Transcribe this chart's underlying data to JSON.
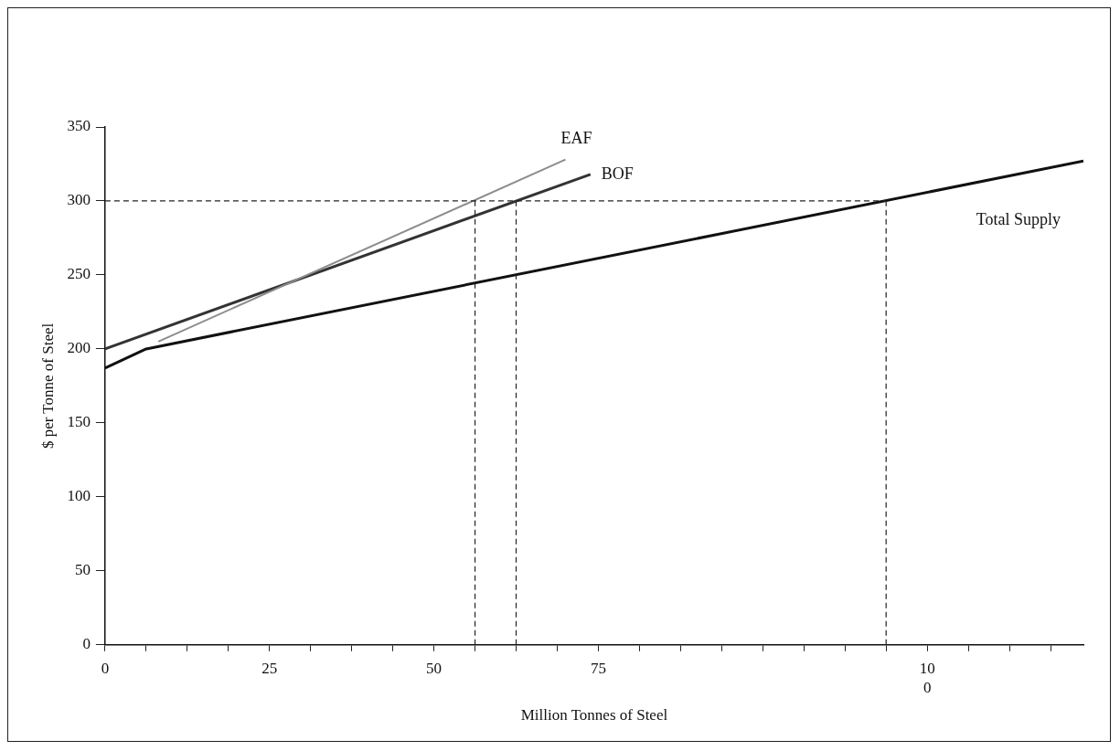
{
  "chart_data": {
    "type": "line",
    "xlabel": "Million Tonnes of Steel",
    "ylabel": "$ per Tonne of Steel",
    "xlim": [
      0,
      148.75
    ],
    "ylim": [
      0,
      350
    ],
    "xticks": [
      0,
      {
        "value": 6.25,
        "label": null
      },
      {
        "value": 12.5,
        "label": null
      },
      {
        "value": 18.75,
        "label": null
      },
      25,
      {
        "value": 31.25,
        "label": null
      },
      {
        "value": 37.5,
        "label": null
      },
      {
        "value": 43.75,
        "label": null
      },
      50,
      {
        "value": 56.25,
        "label": null
      },
      {
        "value": 62.5,
        "label": null
      },
      {
        "value": 68.75,
        "label": null
      },
      75,
      {
        "value": 81.25,
        "label": null
      },
      {
        "value": 87.5,
        "label": null
      },
      {
        "value": 93.75,
        "label": null
      },
      {
        "value": 100,
        "label": null
      },
      {
        "value": 106.25,
        "label": null
      },
      {
        "value": 112.5,
        "label": null
      },
      {
        "value": 118.75,
        "label": null
      },
      {
        "value": 125,
        "label": "10\n0"
      },
      {
        "value": 131.25,
        "label": null
      },
      {
        "value": 137.5,
        "label": null
      },
      {
        "value": 143.75,
        "label": null
      }
    ],
    "yticks": [
      0,
      50,
      100,
      150,
      200,
      250,
      300,
      350
    ],
    "grid": false,
    "legend": false,
    "marker": "none",
    "series": [
      {
        "name": "EAF",
        "color": "#8c8c8c",
        "x": [
          8.1,
          70
        ],
        "values": [
          205,
          328
        ]
      },
      {
        "name": "BOF",
        "color": "#333333",
        "x": [
          0,
          73.8
        ],
        "values": [
          200,
          318
        ]
      },
      {
        "name": "Total Supply",
        "color": "#111111",
        "x": [
          0,
          6.25,
          148.75
        ],
        "values": [
          187,
          200,
          327
        ]
      }
    ],
    "ref_lines": [
      {
        "axis": "y",
        "value": 300,
        "line_style": "dashed",
        "color": "#222222"
      },
      {
        "axis": "x",
        "value": 56.25,
        "line_style": "dashed",
        "color": "#222222"
      },
      {
        "axis": "x",
        "value": 62.5,
        "line_style": "dashed",
        "color": "#222222"
      },
      {
        "axis": "x",
        "value": 118.75,
        "line_style": "dashed",
        "color": "#222222"
      }
    ]
  }
}
